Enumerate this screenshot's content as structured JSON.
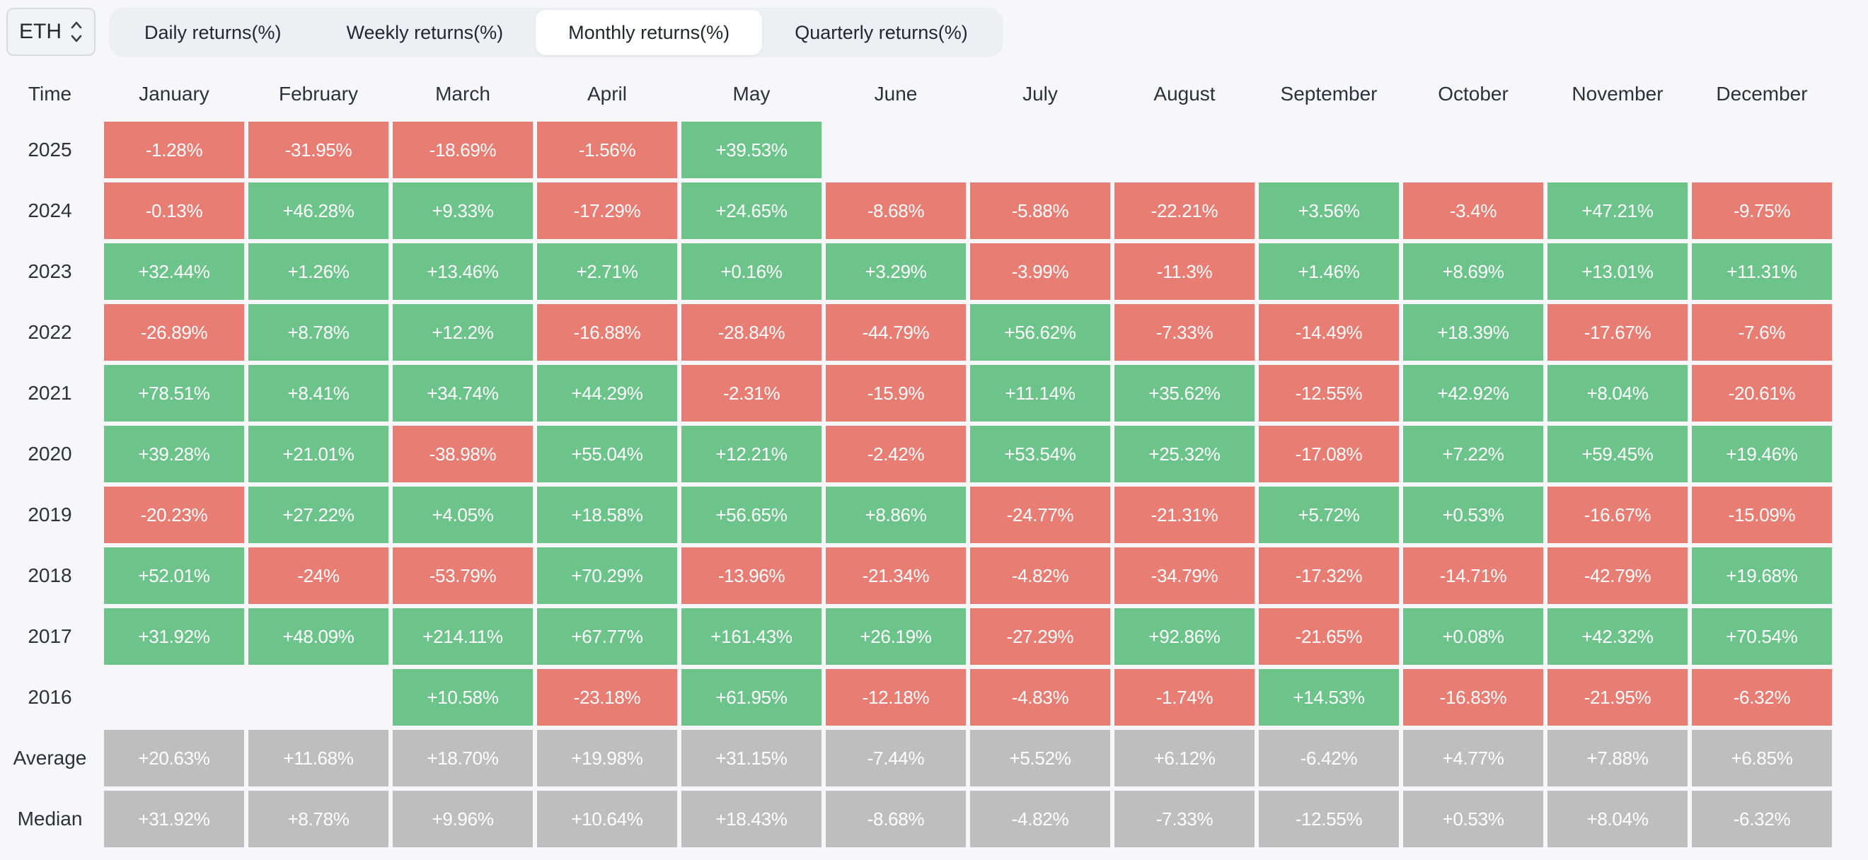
{
  "asset_selector": {
    "value": "ETH"
  },
  "tabs": [
    {
      "label": "Daily returns(%)",
      "active": false
    },
    {
      "label": "Weekly returns(%)",
      "active": false
    },
    {
      "label": "Monthly returns(%)",
      "active": true
    },
    {
      "label": "Quarterly returns(%)",
      "active": false
    }
  ],
  "colors": {
    "positive": "#6cc48a",
    "negative": "#e87d74",
    "summary": "#bfbebe",
    "background": "#f7f7f9"
  },
  "chart_data": {
    "type": "heatmap",
    "title": "Monthly returns(%)",
    "asset": "ETH",
    "columns": [
      "January",
      "February",
      "March",
      "April",
      "May",
      "June",
      "July",
      "August",
      "September",
      "October",
      "November",
      "December"
    ],
    "rows": [
      "2025",
      "2024",
      "2023",
      "2022",
      "2021",
      "2020",
      "2019",
      "2018",
      "2017",
      "2016",
      "Average",
      "Median"
    ],
    "values": [
      [
        -1.28,
        -31.95,
        -18.69,
        -1.56,
        39.53,
        null,
        null,
        null,
        null,
        null,
        null,
        null
      ],
      [
        -0.13,
        46.28,
        9.33,
        -17.29,
        24.65,
        -8.68,
        -5.88,
        -22.21,
        3.56,
        -3.4,
        47.21,
        -9.75
      ],
      [
        32.44,
        1.26,
        13.46,
        2.71,
        0.16,
        3.29,
        -3.99,
        -11.3,
        1.46,
        8.69,
        13.01,
        11.31
      ],
      [
        -26.89,
        8.78,
        12.2,
        -16.88,
        -28.84,
        -44.79,
        56.62,
        -7.33,
        -14.49,
        18.39,
        -17.67,
        -7.6
      ],
      [
        78.51,
        8.41,
        34.74,
        44.29,
        -2.31,
        -15.9,
        11.14,
        35.62,
        -12.55,
        42.92,
        8.04,
        -20.61
      ],
      [
        39.28,
        21.01,
        -38.98,
        55.04,
        12.21,
        -2.42,
        53.54,
        25.32,
        -17.08,
        7.22,
        59.45,
        19.46
      ],
      [
        -20.23,
        27.22,
        4.05,
        18.58,
        56.65,
        8.86,
        -24.77,
        -21.31,
        5.72,
        0.53,
        -16.67,
        -15.09
      ],
      [
        52.01,
        -24,
        -53.79,
        70.29,
        -13.96,
        -21.34,
        -4.82,
        -34.79,
        -17.32,
        -14.71,
        -42.79,
        19.68
      ],
      [
        31.92,
        48.09,
        214.11,
        67.77,
        161.43,
        26.19,
        -27.29,
        92.86,
        -21.65,
        0.08,
        42.32,
        70.54
      ],
      [
        null,
        null,
        10.58,
        -23.18,
        61.95,
        -12.18,
        -4.83,
        -1.74,
        14.53,
        -16.83,
        -21.95,
        -6.32
      ],
      [
        20.63,
        11.68,
        18.7,
        19.98,
        31.15,
        -7.44,
        5.52,
        6.12,
        -6.42,
        4.77,
        7.88,
        6.85
      ],
      [
        31.92,
        8.78,
        9.96,
        10.64,
        18.43,
        -8.68,
        -4.82,
        -7.33,
        -12.55,
        0.53,
        8.04,
        -6.32
      ]
    ]
  },
  "table": {
    "time_header": "Time",
    "months": [
      "January",
      "February",
      "March",
      "April",
      "May",
      "June",
      "July",
      "August",
      "September",
      "October",
      "November",
      "December"
    ],
    "rows": [
      {
        "label": "2025",
        "summary": false,
        "cells": [
          "-1.28%",
          "-31.95%",
          "-18.69%",
          "-1.56%",
          "+39.53%",
          "",
          "",
          "",
          "",
          "",
          "",
          ""
        ]
      },
      {
        "label": "2024",
        "summary": false,
        "cells": [
          "-0.13%",
          "+46.28%",
          "+9.33%",
          "-17.29%",
          "+24.65%",
          "-8.68%",
          "-5.88%",
          "-22.21%",
          "+3.56%",
          "-3.4%",
          "+47.21%",
          "-9.75%"
        ]
      },
      {
        "label": "2023",
        "summary": false,
        "cells": [
          "+32.44%",
          "+1.26%",
          "+13.46%",
          "+2.71%",
          "+0.16%",
          "+3.29%",
          "-3.99%",
          "-11.3%",
          "+1.46%",
          "+8.69%",
          "+13.01%",
          "+11.31%"
        ]
      },
      {
        "label": "2022",
        "summary": false,
        "cells": [
          "-26.89%",
          "+8.78%",
          "+12.2%",
          "-16.88%",
          "-28.84%",
          "-44.79%",
          "+56.62%",
          "-7.33%",
          "-14.49%",
          "+18.39%",
          "-17.67%",
          "-7.6%"
        ]
      },
      {
        "label": "2021",
        "summary": false,
        "cells": [
          "+78.51%",
          "+8.41%",
          "+34.74%",
          "+44.29%",
          "-2.31%",
          "-15.9%",
          "+11.14%",
          "+35.62%",
          "-12.55%",
          "+42.92%",
          "+8.04%",
          "-20.61%"
        ]
      },
      {
        "label": "2020",
        "summary": false,
        "cells": [
          "+39.28%",
          "+21.01%",
          "-38.98%",
          "+55.04%",
          "+12.21%",
          "-2.42%",
          "+53.54%",
          "+25.32%",
          "-17.08%",
          "+7.22%",
          "+59.45%",
          "+19.46%"
        ]
      },
      {
        "label": "2019",
        "summary": false,
        "cells": [
          "-20.23%",
          "+27.22%",
          "+4.05%",
          "+18.58%",
          "+56.65%",
          "+8.86%",
          "-24.77%",
          "-21.31%",
          "+5.72%",
          "+0.53%",
          "-16.67%",
          "-15.09%"
        ]
      },
      {
        "label": "2018",
        "summary": false,
        "cells": [
          "+52.01%",
          "-24%",
          "-53.79%",
          "+70.29%",
          "-13.96%",
          "-21.34%",
          "-4.82%",
          "-34.79%",
          "-17.32%",
          "-14.71%",
          "-42.79%",
          "+19.68%"
        ]
      },
      {
        "label": "2017",
        "summary": false,
        "cells": [
          "+31.92%",
          "+48.09%",
          "+214.11%",
          "+67.77%",
          "+161.43%",
          "+26.19%",
          "-27.29%",
          "+92.86%",
          "-21.65%",
          "+0.08%",
          "+42.32%",
          "+70.54%"
        ]
      },
      {
        "label": "2016",
        "summary": false,
        "cells": [
          "",
          "",
          "+10.58%",
          "-23.18%",
          "+61.95%",
          "-12.18%",
          "-4.83%",
          "-1.74%",
          "+14.53%",
          "-16.83%",
          "-21.95%",
          "-6.32%"
        ]
      },
      {
        "label": "Average",
        "summary": true,
        "cells": [
          "+20.63%",
          "+11.68%",
          "+18.70%",
          "+19.98%",
          "+31.15%",
          "-7.44%",
          "+5.52%",
          "+6.12%",
          "-6.42%",
          "+4.77%",
          "+7.88%",
          "+6.85%"
        ]
      },
      {
        "label": "Median",
        "summary": true,
        "cells": [
          "+31.92%",
          "+8.78%",
          "+9.96%",
          "+10.64%",
          "+18.43%",
          "-8.68%",
          "-4.82%",
          "-7.33%",
          "-12.55%",
          "+0.53%",
          "+8.04%",
          "-6.32%"
        ]
      }
    ]
  }
}
